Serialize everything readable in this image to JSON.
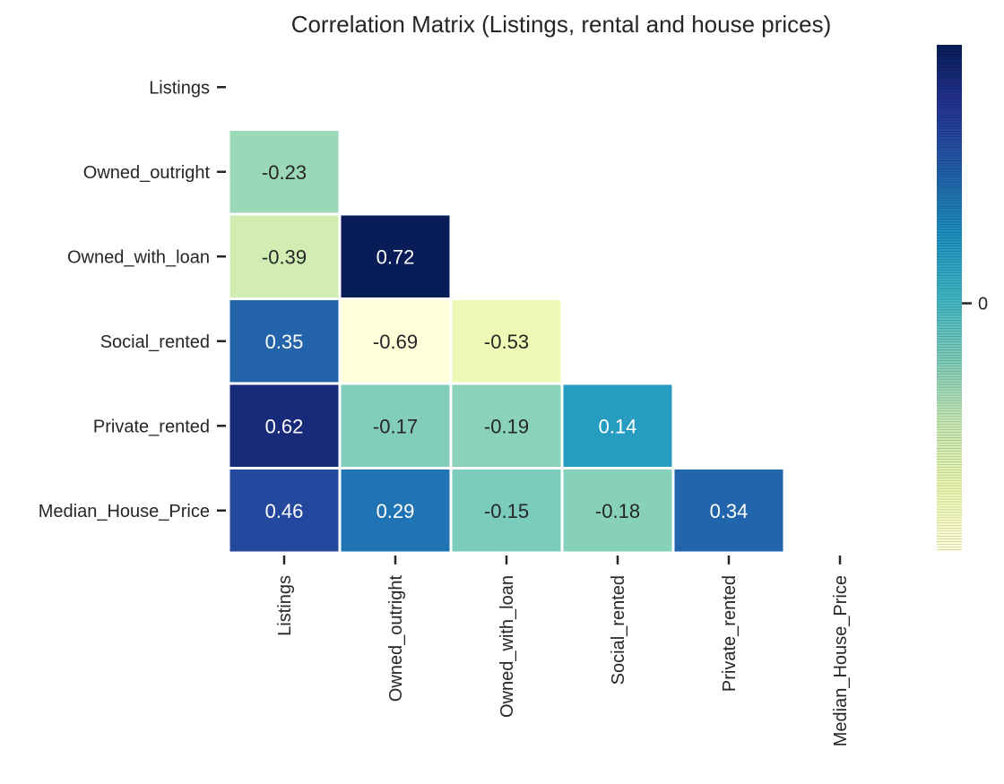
{
  "chart_data": {
    "type": "heatmap",
    "title": "Correlation Matrix (Listings, rental and house prices)",
    "xlabel": "",
    "ylabel": "",
    "row_labels": [
      "Listings",
      "Owned_outright",
      "Owned_with_loan",
      "Social_rented",
      "Private_rented",
      "Median_House_Price"
    ],
    "col_labels": [
      "Listings",
      "Owned_outright",
      "Owned_with_loan",
      "Social_rented",
      "Private_rented",
      "Median_House_Price"
    ],
    "mask": "upper-triangle-including-diagonal",
    "values": [
      [
        null,
        null,
        null,
        null,
        null,
        null
      ],
      [
        -0.23,
        null,
        null,
        null,
        null,
        null
      ],
      [
        -0.39,
        0.72,
        null,
        null,
        null,
        null
      ],
      [
        0.35,
        -0.69,
        -0.53,
        null,
        null,
        null
      ],
      [
        0.62,
        -0.17,
        -0.19,
        0.14,
        null,
        null
      ],
      [
        0.46,
        0.29,
        -0.15,
        -0.18,
        0.34,
        null
      ]
    ],
    "colormap": "YlGnBu",
    "colorbar": {
      "ticks": [
        0
      ],
      "tick_labels": [
        "0"
      ]
    },
    "grid": false
  }
}
